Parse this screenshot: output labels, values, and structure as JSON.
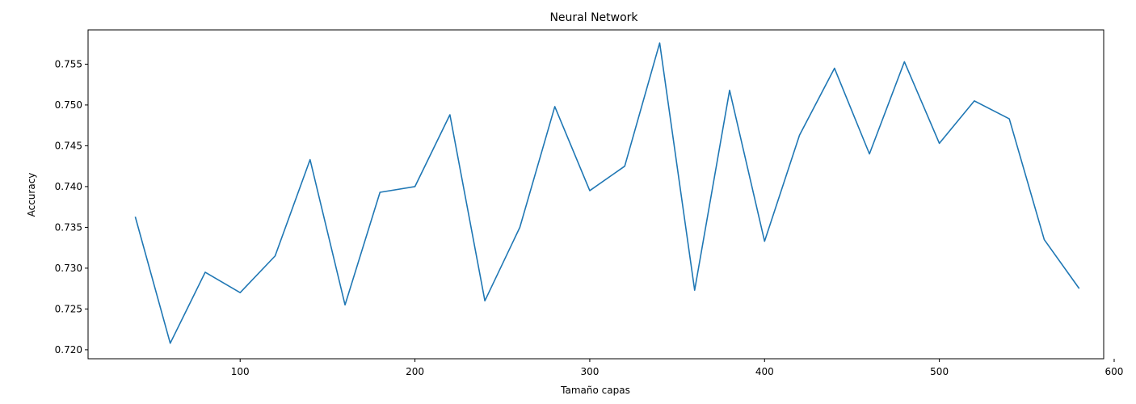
{
  "chart_data": {
    "type": "line",
    "title": "Neural Network",
    "xlabel": "Tamaño capas",
    "ylabel": "Accuracy",
    "xlim": [
      13,
      594
    ],
    "ylim": [
      0.7189,
      0.7592
    ],
    "xticks": [
      100,
      200,
      300,
      400,
      500,
      600
    ],
    "xtick_labels": [
      "100",
      "200",
      "300",
      "400",
      "500",
      "600"
    ],
    "yticks": [
      0.72,
      0.725,
      0.73,
      0.735,
      0.74,
      0.745,
      0.75,
      0.755
    ],
    "ytick_labels": [
      "0.720",
      "0.725",
      "0.730",
      "0.735",
      "0.740",
      "0.745",
      "0.750",
      "0.755"
    ],
    "grid": false,
    "series": [
      {
        "color": "#1f77b4",
        "x": [
          40,
          60,
          80,
          100,
          120,
          140,
          160,
          180,
          200,
          220,
          240,
          260,
          280,
          300,
          320,
          340,
          360,
          380,
          400,
          420,
          440,
          460,
          480,
          500,
          520,
          540,
          560,
          580
        ],
        "y": [
          0.7363,
          0.7208,
          0.7295,
          0.727,
          0.7315,
          0.7433,
          0.7255,
          0.7393,
          0.74,
          0.7488,
          0.726,
          0.735,
          0.7498,
          0.7395,
          0.7425,
          0.7576,
          0.7273,
          0.7518,
          0.7333,
          0.7463,
          0.7545,
          0.744,
          0.7553,
          0.7453,
          0.7505,
          0.7483,
          0.7335,
          0.7275
        ]
      }
    ]
  }
}
